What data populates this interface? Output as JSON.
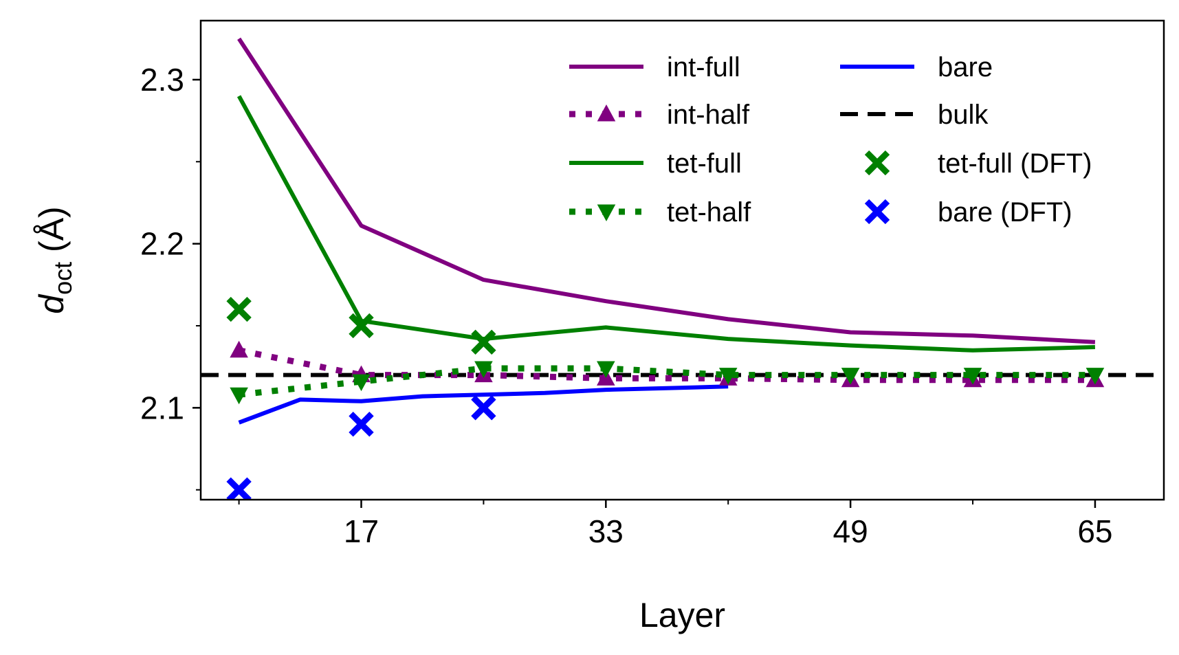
{
  "chart_data": {
    "type": "line",
    "xlabel": "Layer",
    "ylabel": {
      "main": "d",
      "sub": "oct",
      "unit": "(Å)"
    },
    "xlim": [
      6.5,
      69.5
    ],
    "ylim": [
      2.044,
      2.336
    ],
    "x_ticks": [
      {
        "value": 17,
        "label": "17"
      },
      {
        "value": 33,
        "label": "33"
      },
      {
        "value": 49,
        "label": "49"
      },
      {
        "value": 65,
        "label": "65"
      }
    ],
    "x_minor_ticks": [
      9,
      25,
      41,
      57
    ],
    "y_ticks": [
      {
        "value": 2.1,
        "label": "2.1"
      },
      {
        "value": 2.2,
        "label": "2.2"
      },
      {
        "value": 2.3,
        "label": "2.3"
      }
    ],
    "y_minor_ticks": [
      2.05,
      2.15,
      2.25
    ],
    "legend": {
      "placement": "top-right",
      "columns": 2
    },
    "series": [
      {
        "name": "int-full",
        "style": "solid",
        "marker": "none",
        "color": "#800080",
        "points": [
          [
            9,
            2.325
          ],
          [
            17,
            2.211
          ],
          [
            25,
            2.178
          ],
          [
            33,
            2.165
          ],
          [
            41,
            2.154
          ],
          [
            49,
            2.146
          ],
          [
            57,
            2.144
          ],
          [
            65,
            2.14
          ]
        ]
      },
      {
        "name": "int-half",
        "style": "dotted",
        "marker": "triangle-up",
        "color": "#800080",
        "points": [
          [
            9,
            2.135
          ],
          [
            17,
            2.12
          ],
          [
            25,
            2.12
          ],
          [
            33,
            2.118
          ],
          [
            41,
            2.118
          ],
          [
            49,
            2.117
          ],
          [
            57,
            2.117
          ],
          [
            65,
            2.117
          ]
        ]
      },
      {
        "name": "tet-full",
        "style": "solid",
        "marker": "none",
        "color": "#008000",
        "points": [
          [
            9,
            2.29
          ],
          [
            17,
            2.153
          ],
          [
            25,
            2.142
          ],
          [
            33,
            2.149
          ],
          [
            41,
            2.142
          ],
          [
            49,
            2.138
          ],
          [
            57,
            2.135
          ],
          [
            65,
            2.137
          ]
        ]
      },
      {
        "name": "tet-half",
        "style": "dotted",
        "marker": "triangle-down",
        "color": "#008000",
        "points": [
          [
            9,
            2.108
          ],
          [
            17,
            2.116
          ],
          [
            25,
            2.124
          ],
          [
            33,
            2.124
          ],
          [
            41,
            2.12
          ],
          [
            49,
            2.12
          ],
          [
            57,
            2.12
          ],
          [
            65,
            2.12
          ]
        ]
      },
      {
        "name": "bare",
        "style": "solid",
        "marker": "none",
        "color": "#0000ff",
        "points": [
          [
            9,
            2.091
          ],
          [
            13,
            2.105
          ],
          [
            17,
            2.104
          ],
          [
            21,
            2.107
          ],
          [
            25,
            2.108
          ],
          [
            29,
            2.109
          ],
          [
            33,
            2.111
          ],
          [
            37,
            2.112
          ],
          [
            41,
            2.113
          ]
        ]
      },
      {
        "name": "bulk",
        "style": "dashed",
        "marker": "none",
        "color": "#000000",
        "points": [
          [
            6.5,
            2.12
          ],
          [
            69.5,
            2.12
          ]
        ]
      },
      {
        "name": "tet-full (DFT)",
        "style": "none",
        "marker": "x",
        "color": "#008000",
        "points": [
          [
            9,
            2.16
          ],
          [
            17,
            2.15
          ],
          [
            25,
            2.14
          ]
        ]
      },
      {
        "name": "bare (DFT)",
        "style": "none",
        "marker": "x",
        "color": "#0000ff",
        "points": [
          [
            9,
            2.05
          ],
          [
            17,
            2.09
          ],
          [
            25,
            2.1
          ]
        ]
      }
    ]
  }
}
